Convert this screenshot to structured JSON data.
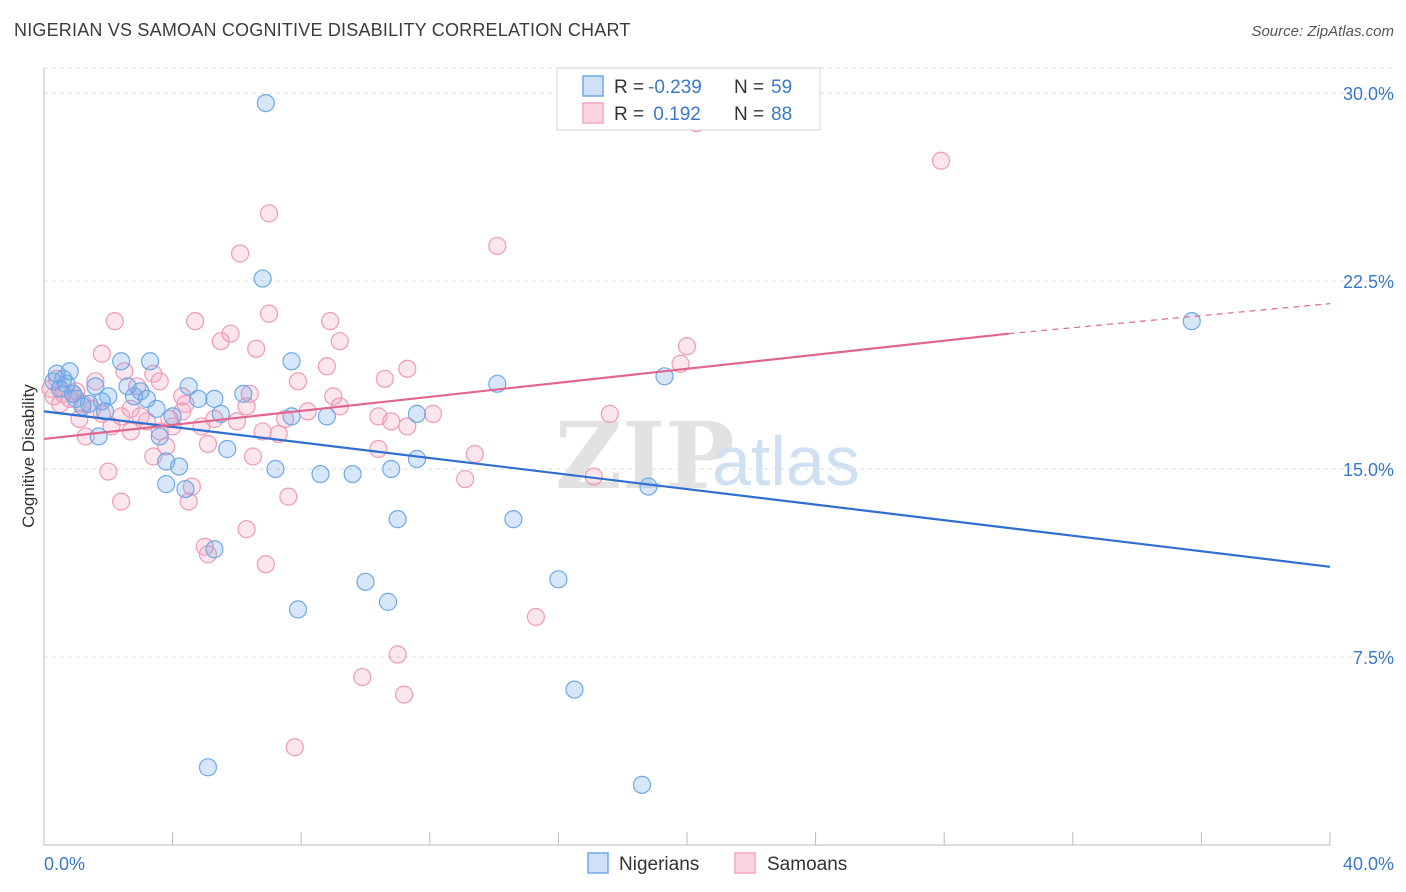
{
  "header": {
    "title": "NIGERIAN VS SAMOAN COGNITIVE DISABILITY CORRELATION CHART",
    "source": "Source: ZipAtlas.com"
  },
  "watermark": {
    "zip": "ZIP",
    "atlas": "atlas"
  },
  "legend_top": {
    "rows": [
      {
        "r_label": "R =",
        "r_value": "-0.239",
        "n_label": "N =",
        "n_value": "59",
        "color": "#6fa8e8"
      },
      {
        "r_label": "R =",
        "r_value": " 0.192",
        "n_label": "N =",
        "n_value": "88",
        "color": "#f3a6bf"
      }
    ]
  },
  "legend_bottom": {
    "items": [
      {
        "label": "Nigerians",
        "color": "#6fa8e8"
      },
      {
        "label": "Samoans",
        "color": "#f3a6bf"
      }
    ]
  },
  "chart_data": {
    "type": "scatter",
    "title": "NIGERIAN VS SAMOAN COGNITIVE DISABILITY CORRELATION CHART",
    "ylabel": "Cognitive Disability",
    "xlabel": "",
    "xlim": [
      0,
      40
    ],
    "ylim": [
      0,
      31
    ],
    "x_tick_labels": [
      "0.0%",
      "40.0%"
    ],
    "y_ticks": [
      7.5,
      15.0,
      22.5,
      30.0
    ],
    "y_tick_labels": [
      "7.5%",
      "15.0%",
      "22.5%",
      "30.0%"
    ],
    "grid": true,
    "colors": {
      "nigerians": "#6fa8e8",
      "nigerians_line": "#2f6fd0",
      "samoans": "#f3a6bf",
      "samoans_line": "#e0668e",
      "tick_text": "#3a78c9"
    },
    "series": [
      {
        "name": "Nigerians",
        "points": [
          [
            0.3,
            18.5
          ],
          [
            0.4,
            18.8
          ],
          [
            0.5,
            18.2
          ],
          [
            0.6,
            18.6
          ],
          [
            0.7,
            18.4
          ],
          [
            0.8,
            18.9
          ],
          [
            0.9,
            18.0
          ],
          [
            1.0,
            17.8
          ],
          [
            1.2,
            17.5
          ],
          [
            1.4,
            17.6
          ],
          [
            1.6,
            18.3
          ],
          [
            1.8,
            17.7
          ],
          [
            1.9,
            17.3
          ],
          [
            2.0,
            17.9
          ],
          [
            2.4,
            19.3
          ],
          [
            2.6,
            18.3
          ],
          [
            3.0,
            18.1
          ],
          [
            3.2,
            17.8
          ],
          [
            3.5,
            17.4
          ],
          [
            3.6,
            16.3
          ],
          [
            4.0,
            17.1
          ],
          [
            4.5,
            18.3
          ],
          [
            4.8,
            17.8
          ],
          [
            5.3,
            17.8
          ],
          [
            5.5,
            17.2
          ],
          [
            6.2,
            18.0
          ],
          [
            3.3,
            19.3
          ],
          [
            7.7,
            19.3
          ],
          [
            6.9,
            29.6
          ],
          [
            6.8,
            22.6
          ],
          [
            2.8,
            17.9
          ],
          [
            1.7,
            16.3
          ],
          [
            3.8,
            15.3
          ],
          [
            4.2,
            15.1
          ],
          [
            5.7,
            15.8
          ],
          [
            7.7,
            17.1
          ],
          [
            8.8,
            17.1
          ],
          [
            8.6,
            14.8
          ],
          [
            10.8,
            15.0
          ],
          [
            11.6,
            15.4
          ],
          [
            11.6,
            17.2
          ],
          [
            9.6,
            14.8
          ],
          [
            3.8,
            14.4
          ],
          [
            14.1,
            18.4
          ],
          [
            19.3,
            18.7
          ],
          [
            35.7,
            20.9
          ],
          [
            11.0,
            13.0
          ],
          [
            14.6,
            13.0
          ],
          [
            18.8,
            14.3
          ],
          [
            16.0,
            10.6
          ],
          [
            10.0,
            10.5
          ],
          [
            10.7,
            9.7
          ],
          [
            7.9,
            9.4
          ],
          [
            5.3,
            11.8
          ],
          [
            4.4,
            14.2
          ],
          [
            16.5,
            6.2
          ],
          [
            5.1,
            3.1
          ],
          [
            18.6,
            2.4
          ],
          [
            7.2,
            15.0
          ]
        ]
      },
      {
        "name": "Samoans",
        "points": [
          [
            0.2,
            18.2
          ],
          [
            0.3,
            17.9
          ],
          [
            0.4,
            18.6
          ],
          [
            0.5,
            17.6
          ],
          [
            0.6,
            18.0
          ],
          [
            0.8,
            17.8
          ],
          [
            1.0,
            18.1
          ],
          [
            1.2,
            17.6
          ],
          [
            1.5,
            17.4
          ],
          [
            1.8,
            17.2
          ],
          [
            2.1,
            16.7
          ],
          [
            2.4,
            17.1
          ],
          [
            2.7,
            16.5
          ],
          [
            3.0,
            17.1
          ],
          [
            3.2,
            16.9
          ],
          [
            3.6,
            16.5
          ],
          [
            4.0,
            16.7
          ],
          [
            4.3,
            17.3
          ],
          [
            4.9,
            16.7
          ],
          [
            5.3,
            17.0
          ],
          [
            6.0,
            16.9
          ],
          [
            6.8,
            16.5
          ],
          [
            7.5,
            17.0
          ],
          [
            8.2,
            17.3
          ],
          [
            9.0,
            17.9
          ],
          [
            9.2,
            17.5
          ],
          [
            10.4,
            17.1
          ],
          [
            10.8,
            16.9
          ],
          [
            2.2,
            20.9
          ],
          [
            4.7,
            20.9
          ],
          [
            5.8,
            20.4
          ],
          [
            6.6,
            19.8
          ],
          [
            7.0,
            21.2
          ],
          [
            8.9,
            20.9
          ],
          [
            9.2,
            20.1
          ],
          [
            1.8,
            19.6
          ],
          [
            2.5,
            18.9
          ],
          [
            3.4,
            18.8
          ],
          [
            5.5,
            20.1
          ],
          [
            8.8,
            19.1
          ],
          [
            10.6,
            18.6
          ],
          [
            11.3,
            19.0
          ],
          [
            6.1,
            23.6
          ],
          [
            7.0,
            25.2
          ],
          [
            14.1,
            23.9
          ],
          [
            27.9,
            27.3
          ],
          [
            20.3,
            28.8
          ],
          [
            20.0,
            19.9
          ],
          [
            19.8,
            19.2
          ],
          [
            12.1,
            17.2
          ],
          [
            17.6,
            17.2
          ],
          [
            13.4,
            15.6
          ],
          [
            10.4,
            15.8
          ],
          [
            11.3,
            16.7
          ],
          [
            13.1,
            14.6
          ],
          [
            17.1,
            14.7
          ],
          [
            6.5,
            15.5
          ],
          [
            7.6,
            13.9
          ],
          [
            4.6,
            14.3
          ],
          [
            4.5,
            13.7
          ],
          [
            6.3,
            12.6
          ],
          [
            5.0,
            11.9
          ],
          [
            5.1,
            11.6
          ],
          [
            6.9,
            11.2
          ],
          [
            15.3,
            9.1
          ],
          [
            11.0,
            7.6
          ],
          [
            9.9,
            6.7
          ],
          [
            11.2,
            6.0
          ],
          [
            7.8,
            3.9
          ],
          [
            2.0,
            14.9
          ],
          [
            2.4,
            13.7
          ],
          [
            3.4,
            15.5
          ],
          [
            1.3,
            16.3
          ],
          [
            3.9,
            17.0
          ],
          [
            4.4,
            17.6
          ],
          [
            0.9,
            18.0
          ],
          [
            1.6,
            18.5
          ],
          [
            7.3,
            16.4
          ],
          [
            5.1,
            16.0
          ],
          [
            3.6,
            18.5
          ],
          [
            2.9,
            18.3
          ],
          [
            7.9,
            18.5
          ],
          [
            4.3,
            17.9
          ],
          [
            1.1,
            17.0
          ],
          [
            2.7,
            17.4
          ],
          [
            6.3,
            17.5
          ],
          [
            3.8,
            15.9
          ],
          [
            6.4,
            18.0
          ]
        ]
      }
    ],
    "trendlines": [
      {
        "name": "Nigerians",
        "x": [
          0,
          40
        ],
        "y": [
          17.3,
          11.1
        ]
      },
      {
        "name": "Samoans",
        "x": [
          0,
          30.0
        ],
        "y": [
          16.2,
          20.4
        ],
        "dashed_to": [
          40,
          21.6
        ]
      }
    ]
  }
}
